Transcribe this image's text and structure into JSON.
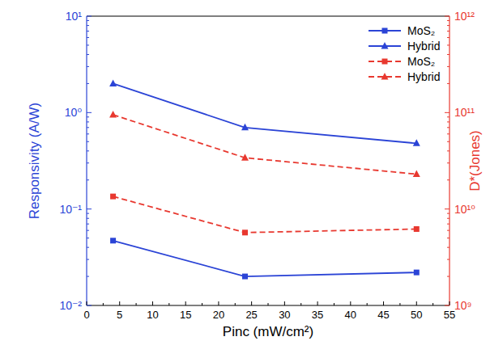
{
  "chart_data": {
    "type": "line",
    "x_label": "Pinc (mW/cm²)",
    "y_label": "Responsivity (A/W)",
    "y2_label": "D*(Jones)",
    "x": [
      4,
      24,
      50
    ],
    "xlim": [
      0,
      55
    ],
    "xticks": [
      0,
      5,
      10,
      15,
      20,
      25,
      30,
      35,
      40,
      45,
      50,
      55
    ],
    "log": "y",
    "ylim": [
      0.01,
      10
    ],
    "yticks": [
      {
        "value": 0.01,
        "label": "10⁻²"
      },
      {
        "value": 0.1,
        "label": "10⁻¹"
      },
      {
        "value": 1,
        "label": "10⁰"
      },
      {
        "value": 10,
        "label": "10¹"
      }
    ],
    "y2lim": [
      1000000000,
      1000000000000
    ],
    "y2ticks": [
      {
        "value": 1000000000,
        "label": "10⁹"
      },
      {
        "value": 10000000000,
        "label": "10¹⁰"
      },
      {
        "value": 100000000000,
        "label": "10¹¹"
      },
      {
        "value": 1000000000000,
        "label": "10¹²"
      }
    ],
    "legend": "upper right",
    "grid": false,
    "series": [
      {
        "name": "MoS₂",
        "color": "#2b44d6",
        "marker": "square",
        "line_style": "solid",
        "values": [
          0.047,
          0.02,
          0.022
        ]
      },
      {
        "name": "Hybrid",
        "color": "#2b44d6",
        "marker": "triangle",
        "line_style": "solid",
        "values": [
          2.0,
          0.7,
          0.48
        ]
      },
      {
        "name": "MoS₂",
        "color": "#e8382f",
        "marker": "square",
        "line_style": "dashed",
        "axis": "y2",
        "values": [
          13500000000,
          5700000000,
          6200000000
        ]
      },
      {
        "name": "Hybrid",
        "color": "#e8382f",
        "marker": "triangle",
        "line_style": "dashed",
        "axis": "y2",
        "values": [
          95000000000,
          34000000000,
          23000000000
        ]
      }
    ]
  }
}
